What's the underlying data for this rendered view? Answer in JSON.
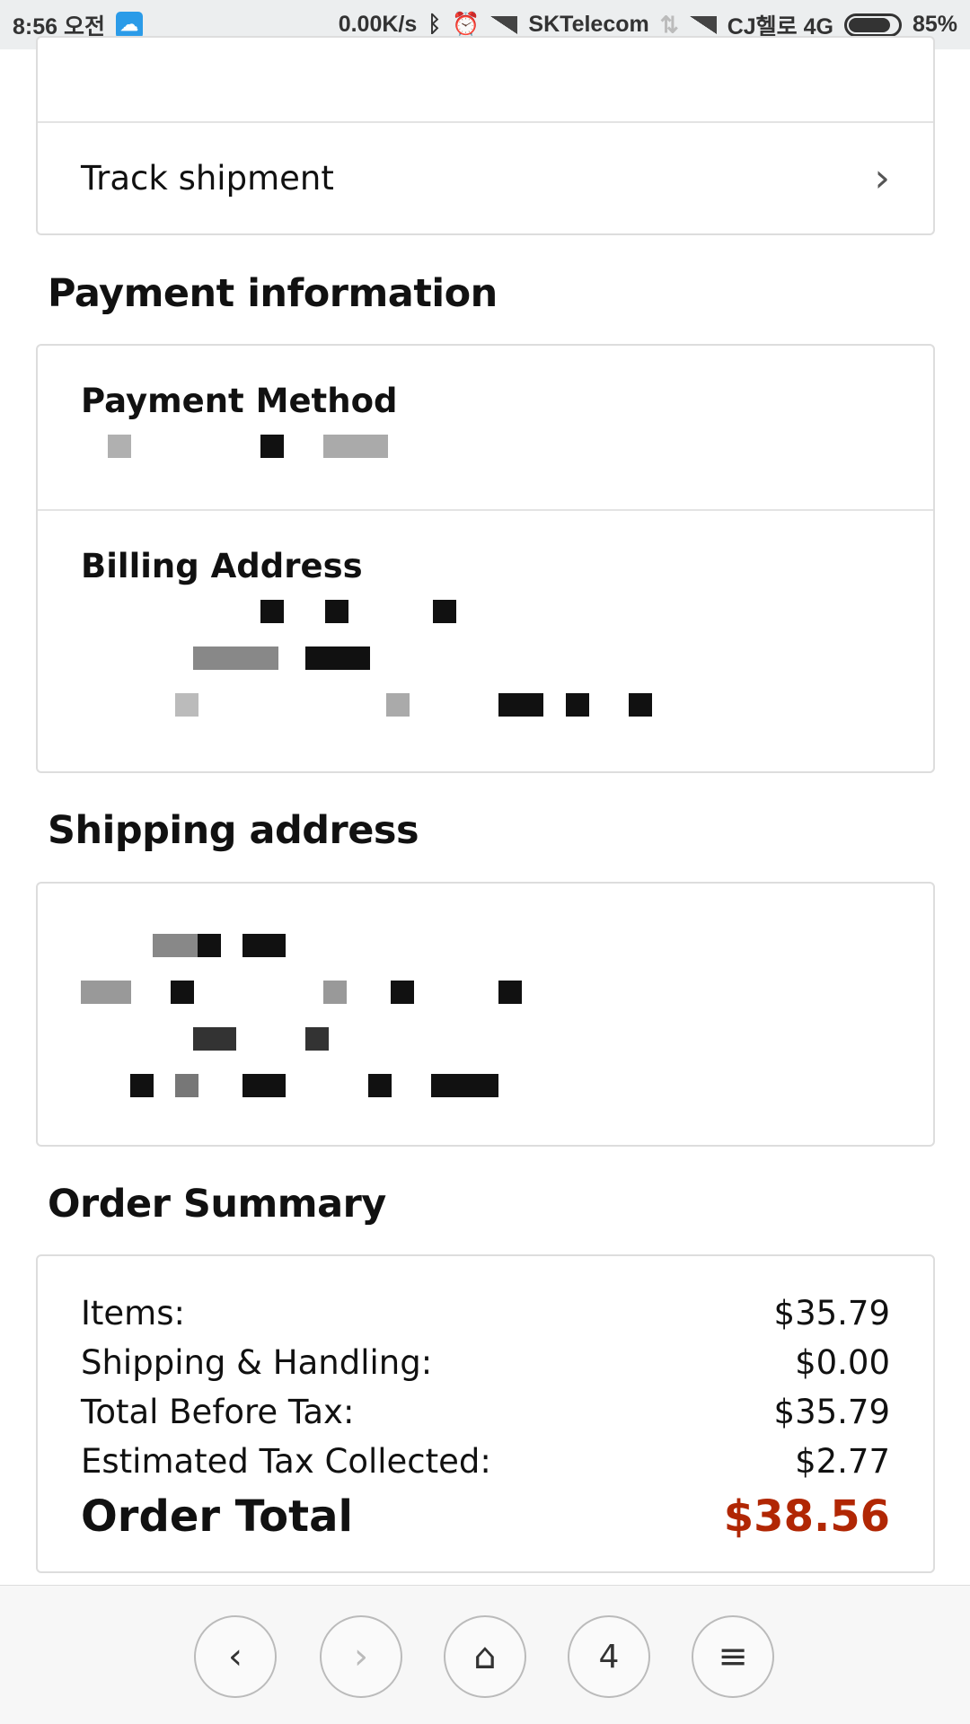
{
  "status_bar": {
    "time": "8:56 오전",
    "net_speed": "0.00K/s",
    "carrier1": "SKTelecom",
    "carrier2": "CJ헬로 4G",
    "battery": "85%",
    "battery_level": 0.85
  },
  "shipment": {
    "track_label": "Track shipment"
  },
  "payment": {
    "heading": "Payment information",
    "method_label": "Payment Method",
    "billing_label": "Billing Address"
  },
  "shipping": {
    "heading": "Shipping address"
  },
  "summary": {
    "heading": "Order Summary",
    "rows": [
      {
        "label": "Items:",
        "value": "$35.79"
      },
      {
        "label": "Shipping & Handling:",
        "value": "$0.00"
      },
      {
        "label": "Total Before Tax:",
        "value": "$35.79"
      },
      {
        "label": "Estimated Tax Collected:",
        "value": "$2.77"
      }
    ],
    "total_label": "Order Total",
    "total_value": "$38.56",
    "total_color": "#b12704"
  },
  "browser": {
    "tab_count": "4"
  }
}
